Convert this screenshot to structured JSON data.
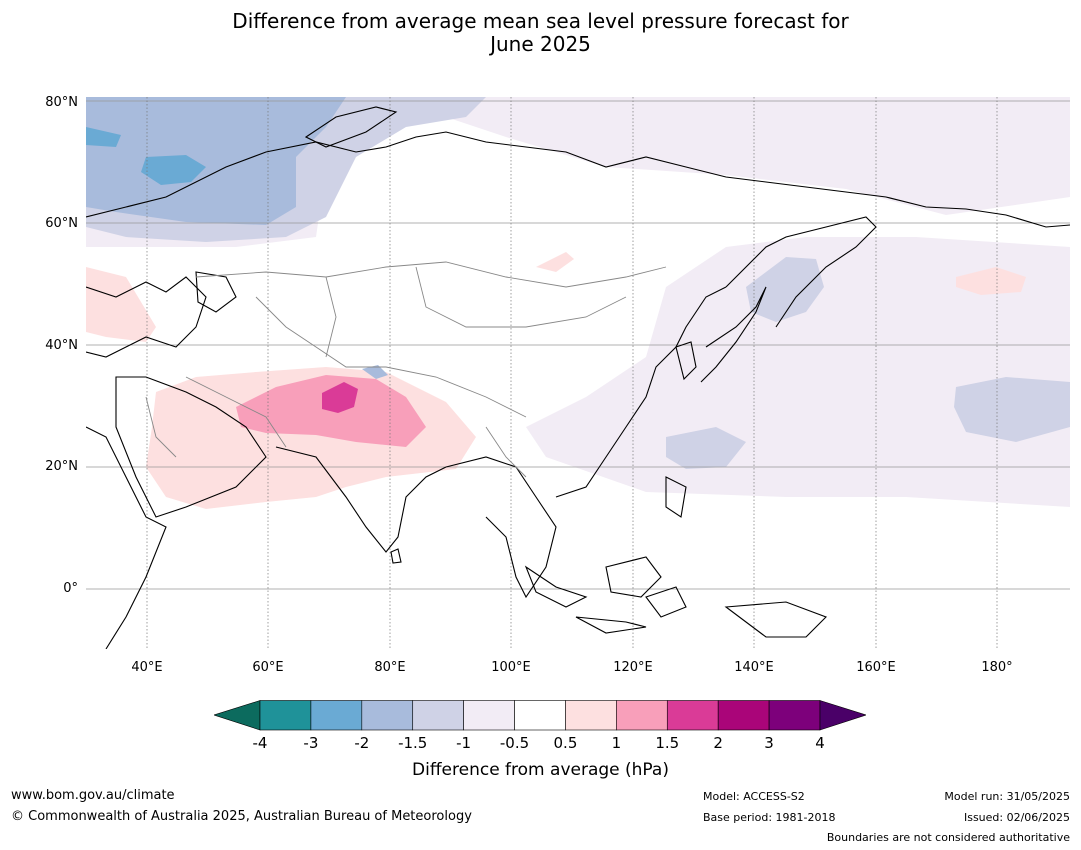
{
  "title_line1": "Difference from average mean sea level pressure forecast for",
  "title_line2": "June 2025",
  "lat_labels": [
    "80°N",
    "60°N",
    "40°N",
    "20°N",
    "0°"
  ],
  "lon_labels": [
    "40°E",
    "60°E",
    "80°E",
    "100°E",
    "120°E",
    "140°E",
    "160°E",
    "180°"
  ],
  "colorbar": {
    "ticks": [
      "-4",
      "-3",
      "-2",
      "-1.5",
      "-1",
      "-0.5",
      "0.5",
      "1",
      "1.5",
      "2",
      "3",
      "4"
    ],
    "colors": [
      "#0c6b5e",
      "#1f9299",
      "#6aaad4",
      "#a8bbdc",
      "#cfd2e6",
      "#f2ecf5",
      "#ffffff",
      "#fde0e0",
      "#f89fba",
      "#da3b97",
      "#aa0579",
      "#7d007b",
      "#4a0068"
    ],
    "label": "Difference from average (hPa)"
  },
  "footer": {
    "website": "www.bom.gov.au/climate",
    "copyright": "© Commonwealth of Australia 2025, Australian Bureau of Meteorology",
    "model": "Model: ACCESS-S2",
    "base_period": "Base period: 1981-2018",
    "model_run": "Model run: 31/05/2025",
    "issued": "Issued: 02/06/2025",
    "disclaimer": "Boundaries are not considered authoritative"
  }
}
